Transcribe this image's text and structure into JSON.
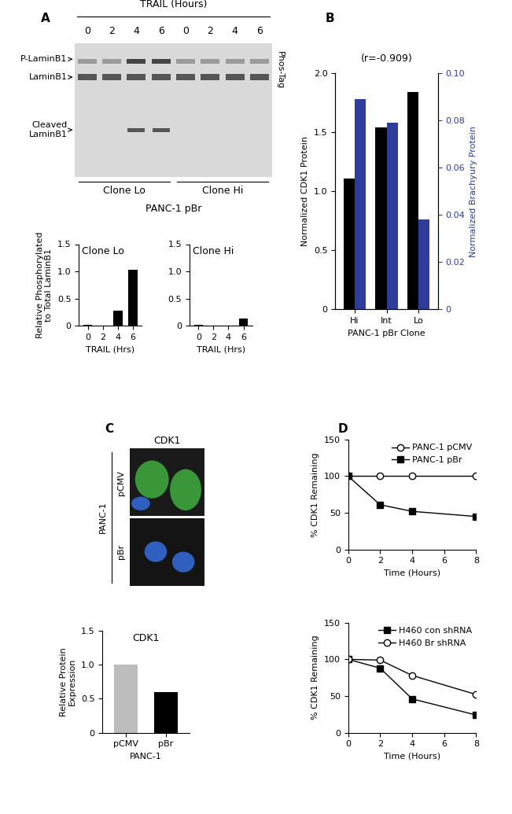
{
  "panel_labels": [
    "A",
    "B",
    "C",
    "D"
  ],
  "gel": {
    "header": "TRAIL (Hours)",
    "lanes": [
      "0",
      "2",
      "4",
      "6",
      "0",
      "2",
      "4",
      "6"
    ],
    "band_labels": [
      "P-LaminB1",
      "LaminB1",
      "Cleaved\nLaminB1"
    ],
    "side_label": "Phos-Tag",
    "groups": [
      "Clone Lo",
      "Clone Hi"
    ],
    "group_caption": "PANC-1 pBr"
  },
  "microscopy": {
    "title": "CDK1",
    "rows": [
      "pCMV",
      "pBr"
    ],
    "side_label": "PANC-1"
  },
  "chart_data": [
    {
      "type": "bar",
      "annotation": "Clone Lo",
      "categories": [
        "0",
        "2",
        "4",
        "6"
      ],
      "values": [
        0.01,
        0,
        0.28,
        1.03
      ],
      "color": "#000000",
      "ylabel": "Relative Phosphorylated\nto Total LaminB1",
      "xlabel": "TRAIL (Hrs)",
      "ylim": [
        0,
        1.5
      ],
      "yticks": [
        0,
        0.5,
        {
          "value": 1,
          "label": "1.0"
        },
        1.5
      ]
    },
    {
      "type": "bar",
      "annotation": "Clone Hi",
      "categories": [
        "0",
        "2",
        "4",
        "6"
      ],
      "values": [
        0.01,
        0,
        0,
        0.13
      ],
      "color": "#000000",
      "xlabel": "TRAIL (Hrs)",
      "ylim": [
        0,
        1.5
      ],
      "yticks": [
        0,
        0.5,
        {
          "value": 1,
          "label": "1.0"
        },
        1.5
      ]
    },
    {
      "type": "bar",
      "annotation": "(r=-0.909)",
      "categories": [
        "Hi",
        "Int",
        "Lo"
      ],
      "xlabel": "PANC-1 pBr Clone",
      "ylabel": "Normalized CDK1 Protein",
      "y2label": "Normalized Brachyury Protein",
      "series": [
        {
          "color": "#000000",
          "values": [
            1.11,
            1.54,
            1.84
          ]
        },
        {
          "color": "#2e3d99",
          "values": [
            0.089,
            0.079,
            0.038
          ],
          "axis": "y2"
        }
      ],
      "ylim": [
        0,
        2
      ],
      "yticks": [
        0,
        0.5,
        {
          "value": 1,
          "label": "1.0"
        },
        1.5,
        {
          "value": 2,
          "label": "2.0"
        }
      ],
      "y2lim": [
        0,
        0.1
      ],
      "y2ticks": [
        0,
        0.02,
        0.04,
        0.06,
        0.08,
        {
          "value": 0.1,
          "label": "0.10"
        }
      ]
    },
    {
      "type": "bar",
      "annotation": "CDK1",
      "categories": [
        "pCMV",
        "pBr"
      ],
      "values": [
        1.0,
        0.6
      ],
      "colors": [
        "#bdbdbd",
        "#000000"
      ],
      "ylabel": "Relative Protein\nExpression",
      "xlabel": "PANC-1",
      "ylim": [
        0,
        1.5
      ],
      "yticks": [
        0,
        0.5,
        {
          "value": 1,
          "label": "1.0"
        },
        1.5
      ]
    },
    {
      "type": "line",
      "x": [
        0,
        2,
        4,
        8
      ],
      "xlabel": "Time (Hours)",
      "ylabel": "% CDK1 Remaining",
      "series": [
        {
          "name": "PANC-1 pCMV",
          "color": "#000000",
          "marker": "open_circle",
          "values": [
            100,
            100,
            100,
            100
          ]
        },
        {
          "name": "PANC-1 pBr",
          "color": "#000000",
          "marker": "square",
          "values": [
            100,
            61,
            52,
            45
          ]
        }
      ],
      "xlim": [
        0,
        8
      ],
      "xticks": [
        0,
        2,
        4,
        6,
        8
      ],
      "ylim": [
        0,
        150
      ],
      "yticks": [
        0,
        50,
        100,
        150
      ],
      "legend": "upper right"
    },
    {
      "type": "line",
      "x": [
        0,
        2,
        4,
        8
      ],
      "xlabel": "Time (Hours)",
      "ylabel": "% CDK1 Remaining",
      "series": [
        {
          "name": "H460 con shRNA",
          "color": "#000000",
          "marker": "square",
          "values": [
            100,
            88,
            46,
            24
          ]
        },
        {
          "name": "H460 Br shRNA",
          "color": "#000000",
          "marker": "open_circle",
          "values": [
            100,
            99,
            78,
            52
          ]
        }
      ],
      "xlim": [
        0,
        8
      ],
      "xticks": [
        0,
        2,
        4,
        6,
        8
      ],
      "ylim": [
        0,
        150
      ],
      "yticks": [
        0,
        50,
        100,
        150
      ],
      "legend": "upper right"
    }
  ]
}
